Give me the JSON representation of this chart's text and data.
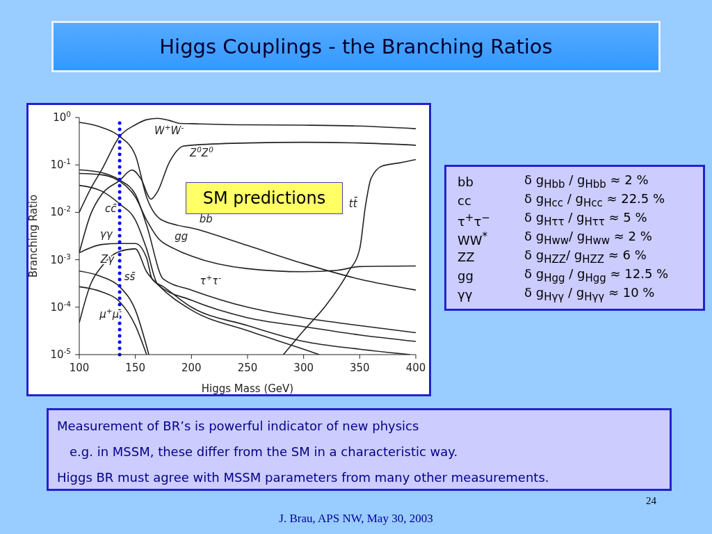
{
  "chart_data": {
    "type": "line",
    "title": "Higgs Couplings - the Branching Ratios",
    "xlabel": "Higgs Mass (GeV)",
    "ylabel": "Branching Ratio",
    "log": "y",
    "grid": false,
    "legend": false,
    "marker": "none",
    "line_style": "solid",
    "xlim": [
      100,
      400
    ],
    "xticks": [
      100,
      150,
      200,
      250,
      300,
      350,
      400
    ],
    "ylim": [
      1e-05,
      1
    ],
    "yticks": [
      {
        "value": 1e-05,
        "label": "10$^{-5}$"
      },
      {
        "value": 0.0001,
        "label": "10$^{-4}$"
      },
      {
        "value": 0.001,
        "label": "10$^{-3}$"
      },
      {
        "value": 0.01,
        "label": "10$^{-2}$"
      },
      {
        "value": 0.1,
        "label": "10$^{-1}$"
      },
      {
        "value": 1,
        "label": "10$^{0}$"
      }
    ],
    "series": [
      {
        "name": "W$^{+}$W$^{-}$",
        "color": "#222222",
        "x": [
          100,
          110,
          120,
          136,
          150,
          160,
          170,
          180,
          190,
          200,
          250,
          300,
          350,
          400
        ],
        "values": [
          0.01,
          0.031,
          0.079,
          0.4,
          0.7,
          0.9,
          0.96,
          0.87,
          0.75,
          0.74,
          0.7,
          0.69,
          0.66,
          0.58
        ]
      },
      {
        "name": "Z$^{0}$Z$^{0}$",
        "color": "#222222",
        "x": [
          100,
          110,
          120,
          136,
          147,
          155,
          164,
          170,
          180,
          193,
          200,
          250,
          300,
          350,
          400
        ],
        "values": [
          0.0014,
          0.0089,
          0.024,
          0.047,
          0.078,
          0.051,
          0.019,
          0.028,
          0.11,
          0.25,
          0.26,
          0.29,
          0.3,
          0.29,
          0.26
        ]
      },
      {
        "name": "tt̄",
        "color": "#222222",
        "x": [
          282,
          300,
          320,
          340,
          350,
          355,
          360,
          370,
          385,
          400
        ],
        "values": [
          1e-05,
          3.2e-05,
          0.00011,
          0.00056,
          0.0017,
          0.013,
          0.051,
          0.095,
          0.11,
          0.13
        ]
      },
      {
        "name": "bb̄",
        "color": "#222222",
        "x": [
          100,
          120,
          136,
          150,
          160,
          174,
          205,
          250,
          300,
          350,
          400
        ],
        "values": [
          0.79,
          0.62,
          0.4,
          0.16,
          0.021,
          0.0068,
          0.0044,
          0.002,
          0.00083,
          0.00039,
          0.00023
        ]
      },
      {
        "name": "gg",
        "color": "#222222",
        "x": [
          100,
          120,
          136,
          150,
          160,
          170,
          185,
          200,
          250,
          300,
          330,
          350,
          400
        ],
        "values": [
          0.066,
          0.062,
          0.045,
          0.021,
          0.0069,
          0.0029,
          0.0017,
          0.0012,
          0.00065,
          0.00056,
          0.0006,
          0.00072,
          0.00074
        ]
      },
      {
        "name": "τ$^{+}$τ$^{-}$",
        "color": "#222222",
        "x": [
          100,
          120,
          136,
          150,
          160,
          175,
          200,
          250,
          300,
          350,
          400
        ],
        "values": [
          0.079,
          0.069,
          0.048,
          0.024,
          0.0054,
          0.00039,
          0.00023,
          0.0001,
          6e-05,
          4.1e-05,
          2.9e-05
        ]
      },
      {
        "name": "cc̄",
        "color": "#222222",
        "x": [
          100,
          120,
          136,
          150,
          160,
          170,
          200,
          250,
          300,
          350,
          400
        ],
        "values": [
          0.037,
          0.028,
          0.015,
          0.0069,
          0.0017,
          0.0003,
          0.00014,
          6e-05,
          3.9e-05,
          2.6e-05,
          1.9e-05
        ]
      },
      {
        "name": "γγ",
        "color": "#222222",
        "x": [
          100,
          120,
          136,
          150,
          160,
          165,
          175,
          200,
          250,
          300,
          350,
          395
        ],
        "values": [
          0.0014,
          0.0021,
          0.0022,
          0.0022,
          0.0011,
          0.00039,
          0.00027,
          0.0001,
          4.1e-05,
          1.9e-05,
          1.3e-05,
          1e-05
        ]
      },
      {
        "name": "Zγ",
        "color": "#222222",
        "x": [
          100,
          110,
          120,
          136,
          150,
          160,
          170,
          200,
          250,
          300,
          314
        ],
        "values": [
          4.7e-05,
          0.0003,
          0.00072,
          0.0015,
          0.0017,
          0.00056,
          0.0003,
          8.7e-05,
          3.2e-05,
          1.3e-05,
          1e-05
        ]
      },
      {
        "name": "ss̄",
        "color": "#222222",
        "x": [
          100,
          120,
          136,
          150,
          162
        ],
        "values": [
          0.00058,
          0.00044,
          0.00027,
          8.7e-05,
          1e-05
        ]
      },
      {
        "name": "μ$^{+}$μ$^{-}$",
        "color": "#222222",
        "x": [
          100,
          120,
          136,
          150,
          160
        ],
        "values": [
          0.00027,
          0.00021,
          0.00013,
          4.1e-05,
          1e-05
        ]
      }
    ],
    "ref_lines": [
      {
        "axis": "x",
        "value": 136,
        "color": "#0000ff",
        "line_style": "dotted"
      }
    ],
    "annotations": [
      "SM predictions",
      "bb",
      "δ g$_{Hbb}$ / g$_{Hbb}$ ≈ 2 %",
      "cc",
      "δ g$_{Hcc}$ / g$_{Hcc}$ ≈ 22.5 %",
      "τ$^{+}$τ$^{−}$",
      "δ g$_{Hττ}$ / g$_{Hττ}$ ≈ 5 %",
      "WW$^{*}$",
      "δ g$_{Hww}$/ g$_{Hww}$ ≈ 2 %",
      "ZZ",
      "δ g$_{HZZ}$/ g$_{HZZ}$ ≈ 6 %",
      "gg",
      "δ g$_{Hgg}$ / g$_{Hgg}$ ≈ 12.5 %",
      "γγ",
      "δ g$_{Hγγ}$ / g$_{Hγγ}$ ≈ 10 %",
      "Measurement of BR’s is powerful indicator of new physics",
      "e.g. in MSSM, these differ from the SM in a characteristic way.",
      "Higgs BR must agree with MSSM parameters from many other measurements.",
      "J. Brau, APS NW, May 30, 2003",
      "24"
    ]
  }
}
